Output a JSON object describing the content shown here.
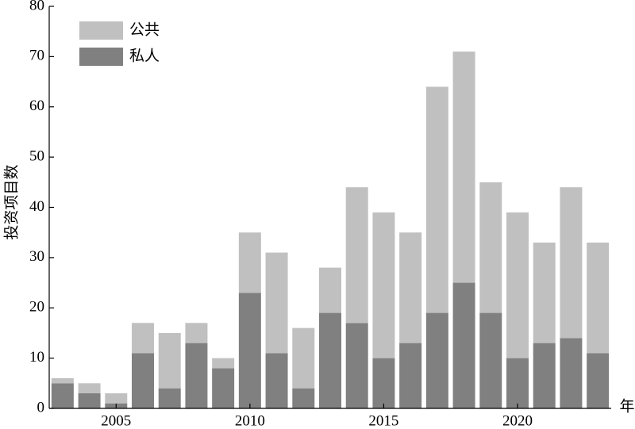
{
  "chart_data": {
    "type": "stacked-bar",
    "x": [
      2003,
      2004,
      2005,
      2006,
      2007,
      2008,
      2009,
      2010,
      2011,
      2012,
      2013,
      2014,
      2015,
      2016,
      2017,
      2018,
      2019,
      2020,
      2021,
      2022,
      2023
    ],
    "series": [
      {
        "name": "私人",
        "color": "#808080",
        "values": [
          5,
          3,
          1,
          11,
          4,
          13,
          8,
          23,
          11,
          4,
          19,
          17,
          10,
          13,
          19,
          25,
          19,
          10,
          13,
          14,
          11
        ]
      },
      {
        "name": "公共",
        "color": "#c0c0c0",
        "values": [
          1,
          2,
          2,
          6,
          11,
          4,
          2,
          12,
          20,
          12,
          9,
          27,
          29,
          22,
          45,
          46,
          26,
          29,
          20,
          30,
          22
        ]
      }
    ],
    "xlim": [
      2002.5,
      2023.5
    ],
    "xticks": [
      2005,
      2010,
      2015,
      2020
    ],
    "ylim": [
      0,
      80
    ],
    "yticks": [
      0,
      10,
      20,
      30,
      40,
      50,
      60,
      70,
      80
    ],
    "xlabel": "年",
    "ylabel": "投资项目数",
    "legend": "upper-left",
    "grid": false
  }
}
